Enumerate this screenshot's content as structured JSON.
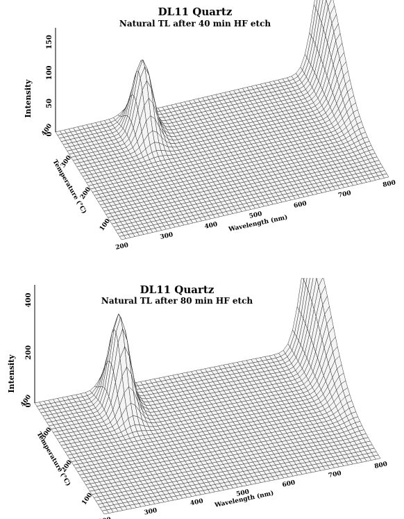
{
  "chart_data": [
    {
      "type": "surface",
      "title": "DL11 Quartz",
      "subtitle": "Natural TL after 40 min HF etch",
      "xlabel": "Wavelength (nm)",
      "ylabel": "Temperature (°C)",
      "zlabel": "Intensity",
      "x_ticks": [
        "200",
        "300",
        "400",
        "500",
        "600",
        "700",
        "800"
      ],
      "y_ticks": [
        "100",
        "200",
        "300",
        "400"
      ],
      "z_ticks": [
        "0",
        "50",
        "100",
        "150"
      ],
      "xlim": [
        200,
        800
      ],
      "ylim": [
        60,
        400
      ],
      "zlim": [
        0,
        170
      ],
      "grid": true,
      "peaks": [
        {
          "wavelength": 370,
          "temperature": 340,
          "intensity": 120
        },
        {
          "wavelength": 800,
          "temperature": 400,
          "intensity": 165
        }
      ]
    },
    {
      "type": "surface",
      "title": "DL11 Quartz",
      "subtitle": "Natural TL after 80 min HF etch",
      "xlabel": "Wavelength (nm)",
      "ylabel": "Temperature (°C)",
      "zlabel": "Intensity",
      "x_ticks": [
        "200",
        "300",
        "400",
        "500",
        "600",
        "700",
        "800"
      ],
      "y_ticks": [
        "100",
        "200",
        "300",
        "400"
      ],
      "z_ticks": [
        "0",
        "200",
        "400"
      ],
      "xlim": [
        200,
        800
      ],
      "ylim": [
        60,
        400
      ],
      "zlim": [
        0,
        450
      ],
      "grid": true,
      "peaks": [
        {
          "wavelength": 360,
          "temperature": 345,
          "intensity": 350
        },
        {
          "wavelength": 800,
          "temperature": 400,
          "intensity": 420
        }
      ]
    }
  ]
}
